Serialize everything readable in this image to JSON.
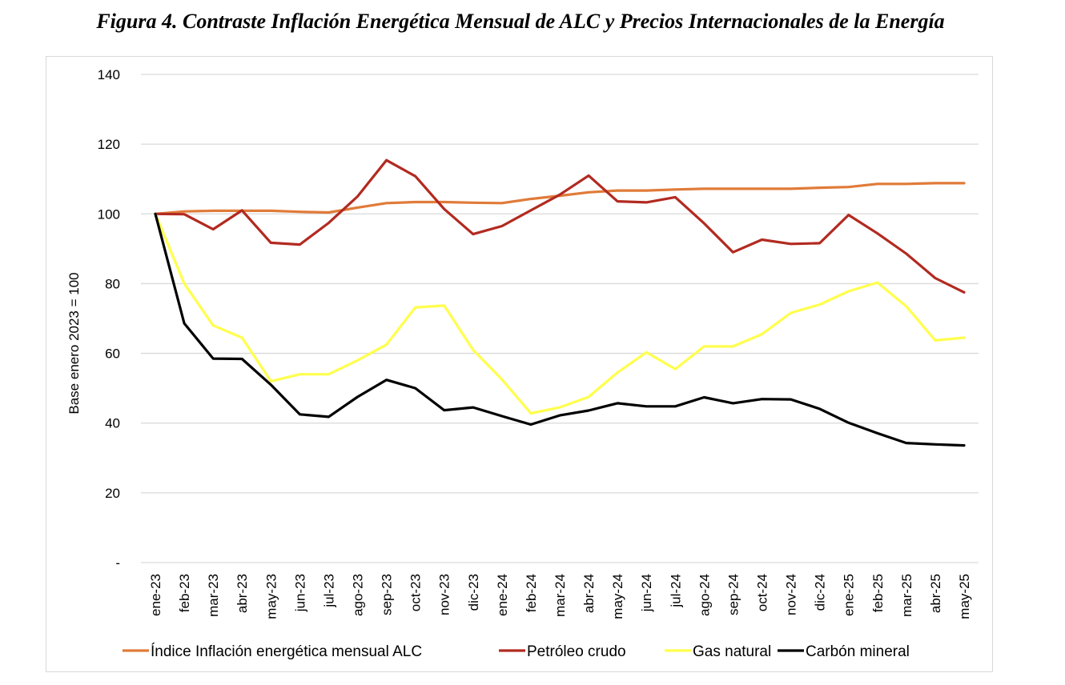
{
  "figure": {
    "title": "Figura 4. Contraste Inflación Energética Mensual de ALC y Precios Internacionales de la Energía"
  },
  "chart_data": {
    "type": "line",
    "ylabel": "Base enero 2023 = 100",
    "ylim": [
      0,
      140
    ],
    "yticks": [
      0,
      20,
      40,
      60,
      80,
      100,
      120,
      140
    ],
    "ytick_labels": [
      "-",
      "20",
      "40",
      "60",
      "80",
      "100",
      "120",
      "140"
    ],
    "grid": true,
    "legend_position": "bottom",
    "categories": [
      "ene-23",
      "feb-23",
      "mar-23",
      "abr-23",
      "may-23",
      "jun-23",
      "jul-23",
      "ago-23",
      "sep-23",
      "oct-23",
      "nov-23",
      "dic-23",
      "ene-24",
      "feb-24",
      "mar-24",
      "abr-24",
      "may-24",
      "jun-24",
      "jul-24",
      "ago-24",
      "sep-24",
      "oct-24",
      "nov-24",
      "dic-24",
      "ene-25",
      "feb-25",
      "mar-25",
      "abr-25",
      "may-25"
    ],
    "series": [
      {
        "name": "Índice Inflación energética mensual ALC",
        "color": "#E07B39",
        "values": [
          100,
          100.7,
          100.9,
          100.9,
          100.9,
          100.6,
          100.4,
          101.8,
          103.1,
          103.4,
          103.4,
          103.2,
          103.1,
          104.3,
          105.2,
          106.2,
          106.7,
          106.7,
          107.0,
          107.2,
          107.2,
          107.2,
          107.2,
          107.5,
          107.7,
          108.6,
          108.6,
          108.8,
          108.8
        ]
      },
      {
        "name": "Petróleo crudo",
        "color": "#B22A20",
        "values": [
          100,
          99.9,
          95.6,
          101.0,
          91.7,
          91.2,
          97.4,
          105.0,
          115.4,
          110.8,
          101.4,
          94.2,
          96.5,
          101.0,
          105.5,
          111.0,
          103.6,
          103.3,
          104.8,
          97.3,
          89.0,
          92.6,
          91.4,
          91.6,
          99.7,
          94.4,
          88.6,
          81.6,
          77.5
        ]
      },
      {
        "name": "Gas natural",
        "color": "#FFFF4D",
        "values": [
          100,
          80.0,
          68.0,
          64.5,
          52.0,
          54.0,
          54.0,
          58.0,
          62.5,
          73.2,
          73.7,
          61.0,
          52.5,
          42.8,
          44.5,
          47.5,
          54.5,
          60.3,
          55.5,
          62.0,
          62.0,
          65.5,
          71.6,
          74.0,
          77.8,
          80.3,
          73.5,
          63.7,
          64.5
        ]
      },
      {
        "name": "Carbón mineral",
        "color": "#000000",
        "values": [
          100,
          68.6,
          58.5,
          58.4,
          51.0,
          42.5,
          41.8,
          47.5,
          52.4,
          50.0,
          43.7,
          44.5,
          42.0,
          39.6,
          42.2,
          43.6,
          45.7,
          44.8,
          44.8,
          47.4,
          45.7,
          46.9,
          46.8,
          44.1,
          40.1,
          37.1,
          34.3,
          33.9,
          33.6
        ]
      }
    ]
  }
}
